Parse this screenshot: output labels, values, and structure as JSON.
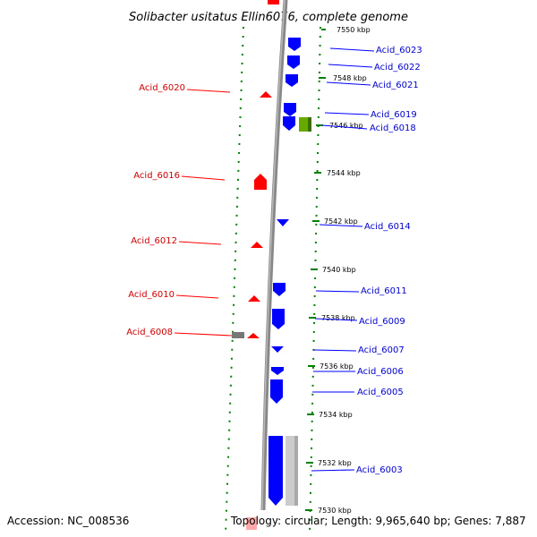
{
  "title": "Solibacter usitatus Ellin6076, complete genome",
  "footer": {
    "accession": "Accession: NC_008536",
    "stats": "Topology: circular; Length: 9,965,640 bp; Genes: 7,887"
  },
  "colors": {
    "forward": "#0000ff",
    "reverse": "#ff0000",
    "other": "#66aa00",
    "neutral": "#999999",
    "ticks": "#008000",
    "backbone": "#888888"
  },
  "kbp_marks": [
    "7550 kbp",
    "7548 kbp",
    "7546 kbp",
    "7544 kbp",
    "7542 kbp",
    "7540 kbp",
    "7538 kbp",
    "7536 kbp",
    "7534 kbp",
    "7532 kbp",
    "7530 kbp"
  ],
  "left_genes": [
    "Acid_6020",
    "Acid_6016",
    "Acid_6012",
    "Acid_6010",
    "Acid_6008"
  ],
  "right_genes": [
    "Acid_6023",
    "Acid_6022",
    "Acid_6021",
    "Acid_6019",
    "Acid_6018",
    "Acid_6014",
    "Acid_6011",
    "Acid_6009",
    "Acid_6007",
    "Acid_6006",
    "Acid_6005",
    "Acid_6003"
  ]
}
